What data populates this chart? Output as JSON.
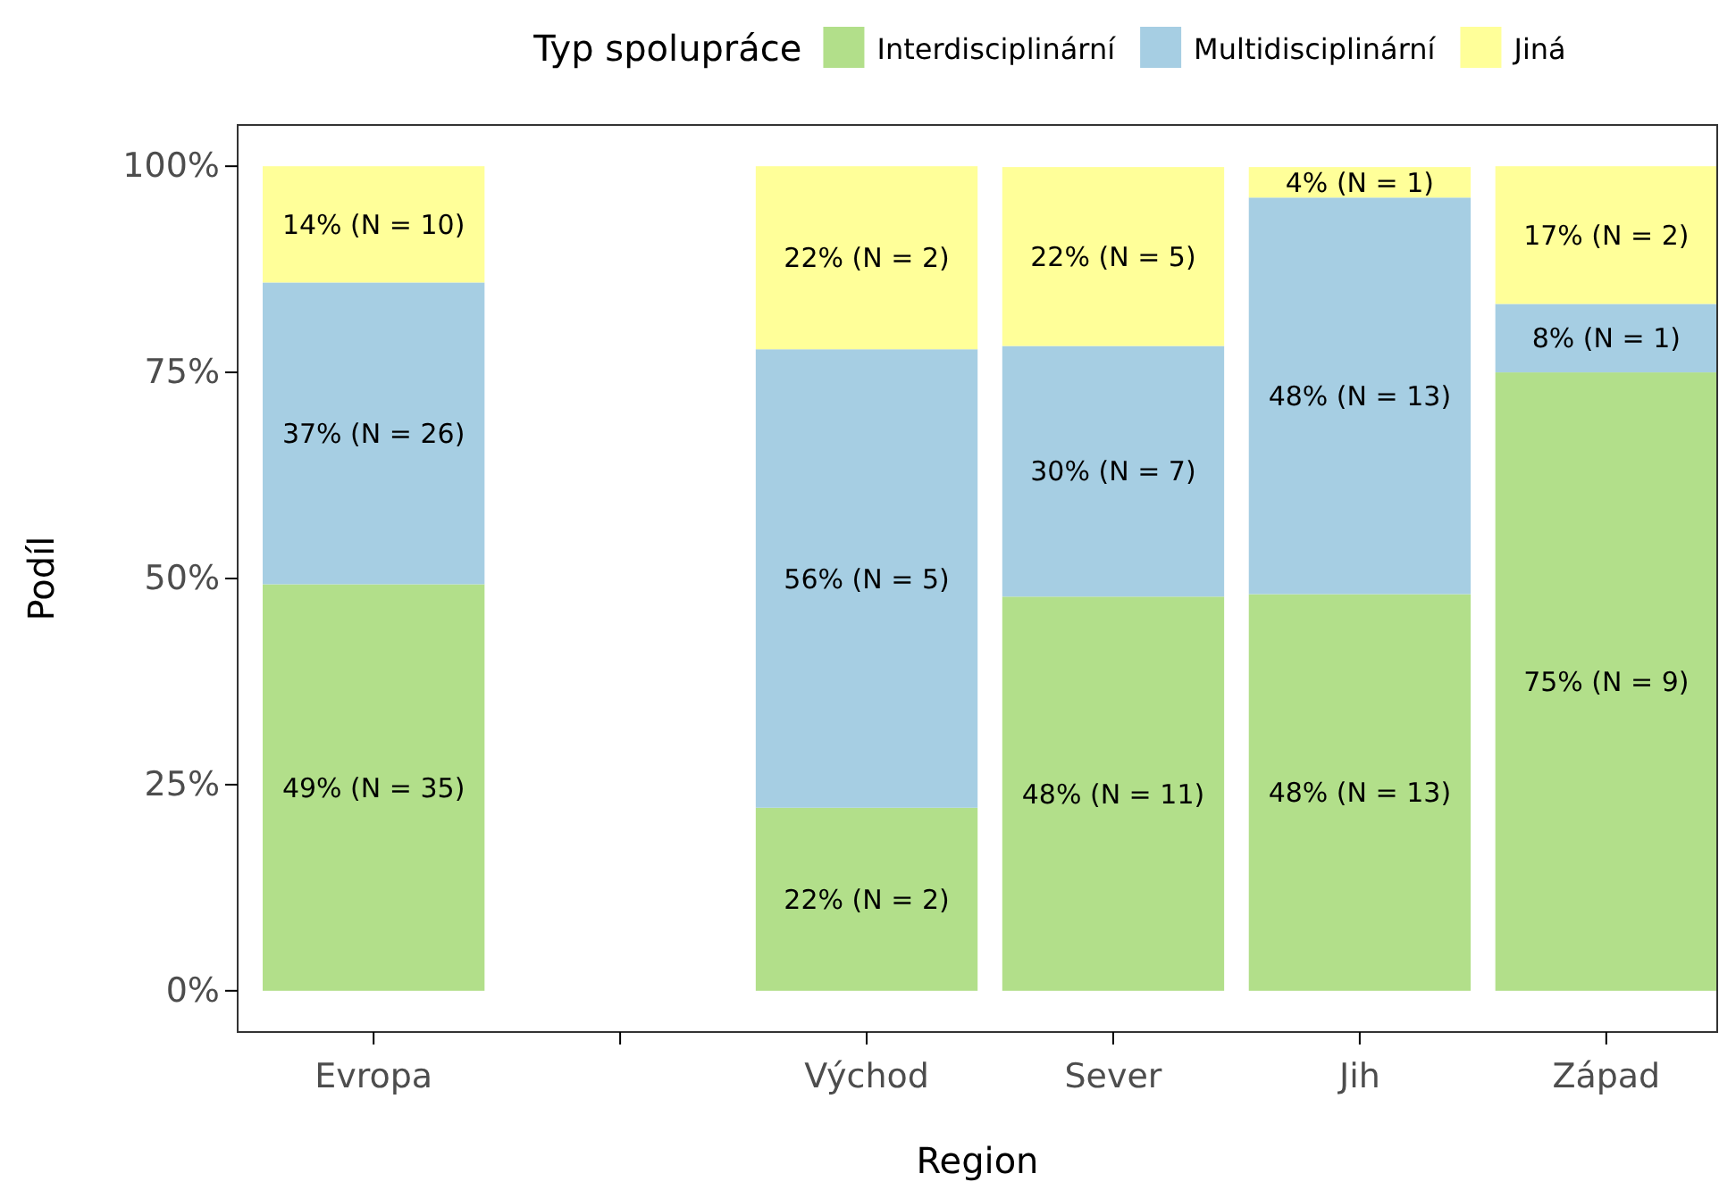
{
  "chart_data": {
    "type": "bar",
    "stacked": true,
    "xlabel": "Region",
    "ylabel": "Podíl",
    "legend_title": "Typ spolupráce",
    "legend": "top",
    "grid": false,
    "categories": [
      "Evropa",
      null,
      "Východ",
      "Sever",
      "Jih",
      "Západ"
    ],
    "ylim": [
      -5,
      105
    ],
    "yticks": [
      {
        "value": 0,
        "label": "0%"
      },
      {
        "value": 25,
        "label": "25%"
      },
      {
        "value": 50,
        "label": "50%"
      },
      {
        "value": 75,
        "label": "75%"
      },
      {
        "value": 100,
        "label": "100%"
      }
    ],
    "series": [
      {
        "name": "Interdisciplinární",
        "color": "#b2df8a",
        "values": [
          49.3,
          null,
          22.2,
          47.8,
          48.1,
          75.0
        ],
        "value_labels": [
          "49% (N = 35)",
          null,
          "22% (N = 2)",
          "48% (N = 11)",
          "48% (N = 13)",
          "75% (N = 9)"
        ]
      },
      {
        "name": "Multidisciplinární",
        "color": "#a6cee3",
        "values": [
          36.6,
          null,
          55.6,
          30.4,
          48.1,
          8.3
        ],
        "value_labels": [
          "37% (N = 26)",
          null,
          "56% (N = 5)",
          "30% (N = 7)",
          "48% (N = 13)",
          "8% (N = 1)"
        ]
      },
      {
        "name": "Jiná",
        "color": "#ffff99",
        "values": [
          14.1,
          null,
          22.2,
          21.7,
          3.7,
          16.7
        ],
        "value_labels": [
          "14% (N = 10)",
          null,
          "22% (N = 2)",
          "22% (N = 5)",
          "4% (N = 1)",
          "17% (N = 2)"
        ]
      }
    ]
  }
}
